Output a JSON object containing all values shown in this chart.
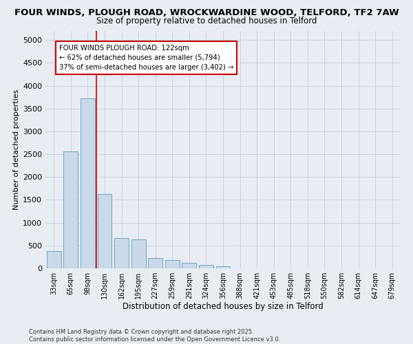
{
  "title_line1": "FOUR WINDS, PLOUGH ROAD, WROCKWARDINE WOOD, TELFORD, TF2 7AW",
  "title_line2": "Size of property relative to detached houses in Telford",
  "xlabel": "Distribution of detached houses by size in Telford",
  "ylabel": "Number of detached properties",
  "categories": [
    "33sqm",
    "65sqm",
    "98sqm",
    "130sqm",
    "162sqm",
    "195sqm",
    "227sqm",
    "259sqm",
    "291sqm",
    "324sqm",
    "356sqm",
    "388sqm",
    "421sqm",
    "453sqm",
    "485sqm",
    "518sqm",
    "550sqm",
    "582sqm",
    "614sqm",
    "647sqm",
    "679sqm"
  ],
  "values": [
    380,
    2560,
    3730,
    1630,
    660,
    640,
    230,
    185,
    120,
    70,
    40,
    0,
    0,
    0,
    0,
    0,
    0,
    0,
    0,
    0,
    0
  ],
  "bar_color": "#c9d9ea",
  "bar_edge_color": "#6699bb",
  "grid_color": "#c8d0dc",
  "background_color": "#e8edf4",
  "red_line_x": 2.5,
  "annotation_text": "FOUR WINDS PLOUGH ROAD: 122sqm\n← 62% of detached houses are smaller (5,794)\n37% of semi-detached houses are larger (3,402) →",
  "annotation_box_color": "#ffffff",
  "annotation_box_edge": "#cc0000",
  "red_line_color": "#cc0000",
  "ylim": [
    0,
    5200
  ],
  "yticks": [
    0,
    500,
    1000,
    1500,
    2000,
    2500,
    3000,
    3500,
    4000,
    4500,
    5000
  ],
  "footer_line1": "Contains HM Land Registry data © Crown copyright and database right 2025.",
  "footer_line2": "Contains public sector information licensed under the Open Government Licence v3.0."
}
